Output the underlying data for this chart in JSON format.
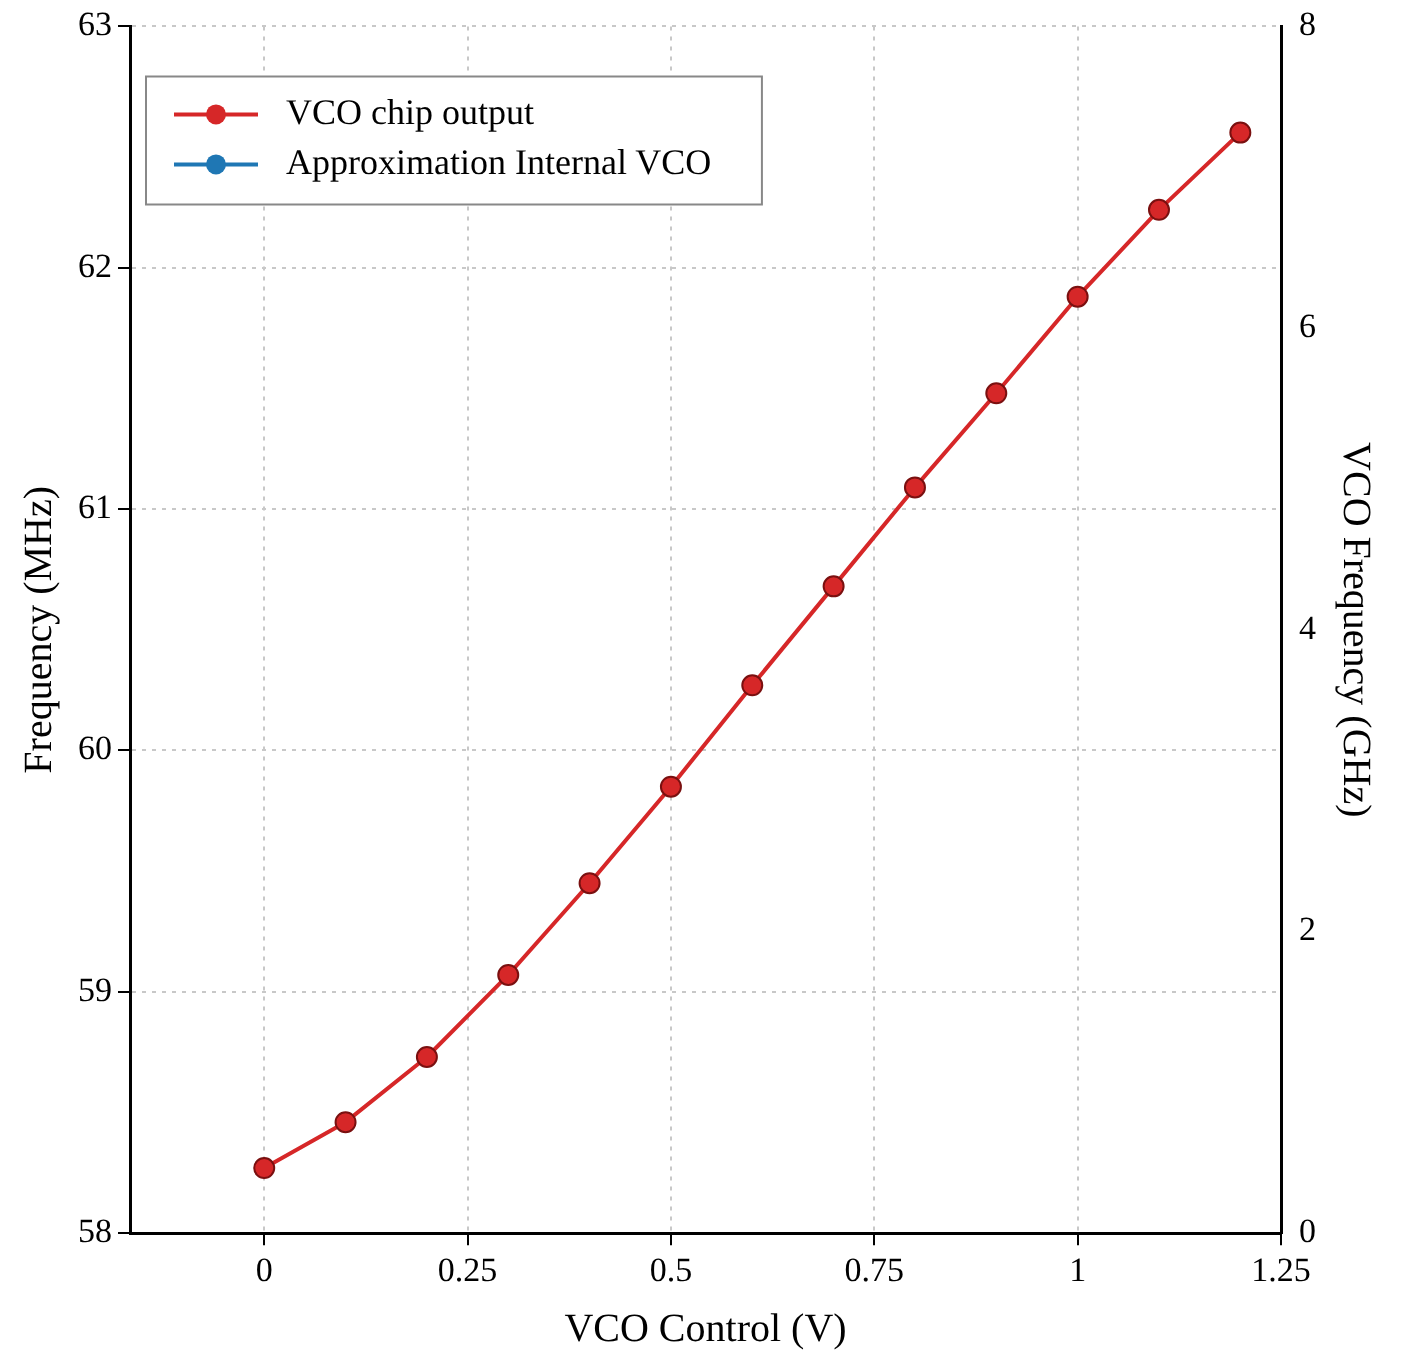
{
  "chart_data": {
    "type": "line",
    "xlabel": "VCO Control (V)",
    "ylabel": "Frequency (MHz)",
    "y2label": "VCO Frequency (GHz)",
    "x": [
      0,
      0.1,
      0.2,
      0.3,
      0.4,
      0.5,
      0.6,
      0.7,
      0.8,
      0.9,
      1,
      1.1,
      1.2
    ],
    "series": [
      {
        "name": "VCO chip output",
        "color": "#d62728",
        "values": [
          58.27,
          58.46,
          58.73,
          59.07,
          59.45,
          59.85,
          60.27,
          60.68,
          61.09,
          61.48,
          61.88,
          62.24,
          62.56
        ]
      },
      {
        "name": "Approximation Internal VCO",
        "color": "#1f77b4",
        "values": [
          null,
          null,
          null,
          null,
          null,
          null,
          null,
          null,
          null,
          null,
          null,
          null,
          null
        ]
      }
    ],
    "xlim": [
      -0.165,
      1.25
    ],
    "xticks": [
      0,
      0.25,
      0.5,
      0.75,
      1,
      1.25
    ],
    "ylim": [
      58,
      63
    ],
    "yticks": [
      58,
      59,
      60,
      61,
      62,
      63
    ],
    "y2lim": [
      0,
      8
    ],
    "y2ticks": [
      0,
      2,
      4,
      6,
      8
    ],
    "grid": true,
    "legend": "top left",
    "marker": "circle",
    "line_style": "solid"
  }
}
